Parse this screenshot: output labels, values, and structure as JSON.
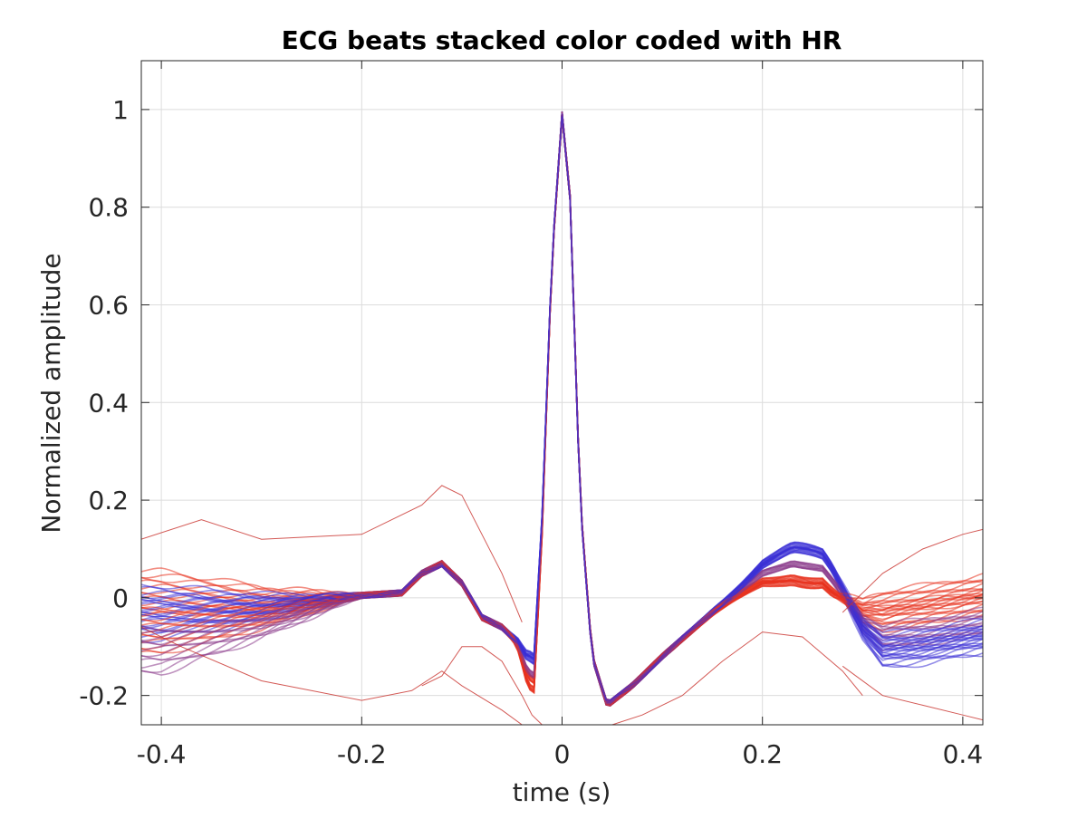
{
  "chart_data": {
    "type": "line",
    "title": "ECG beats stacked color coded with HR",
    "xlabel": "time (s)",
    "ylabel": "Normalized amplitude",
    "xlim": [
      -0.42,
      0.42
    ],
    "ylim": [
      -0.26,
      1.1
    ],
    "xticks": [
      -0.4,
      -0.2,
      0,
      0.2,
      0.4
    ],
    "xtick_labels": [
      "-0.4",
      "-0.2",
      "0",
      "0.2",
      "0.4"
    ],
    "yticks": [
      -0.2,
      0,
      0.2,
      0.4,
      0.6,
      0.8,
      1
    ],
    "ytick_labels": [
      "-0.2",
      "0",
      "0.2",
      "0.4",
      "0.6",
      "0.8",
      "1"
    ],
    "grid": true,
    "colormap": {
      "low_hr_color": "#e8321e",
      "high_hr_color": "#3a2fd6",
      "mid_color": "#8a3a8a"
    },
    "template_beat": {
      "x": [
        -0.42,
        -0.3,
        -0.2,
        -0.16,
        -0.14,
        -0.12,
        -0.1,
        -0.08,
        -0.06,
        -0.045,
        -0.035,
        -0.028,
        -0.02,
        -0.01,
        0,
        0.008,
        0.018,
        0.03,
        0.045,
        0.07,
        0.1,
        0.15,
        0.2,
        0.23,
        0.26,
        0.28,
        0.3,
        0.32,
        0.36,
        0.42
      ],
      "y": [
        -0.01,
        -0.01,
        0.005,
        0.01,
        0.05,
        0.07,
        0.03,
        -0.04,
        -0.06,
        -0.09,
        -0.14,
        -0.15,
        0.15,
        0.7,
        0.99,
        0.82,
        0.2,
        -0.12,
        -0.22,
        -0.18,
        -0.12,
        -0.03,
        0.05,
        0.07,
        0.06,
        0.01,
        -0.04,
        -0.06,
        -0.05,
        -0.03
      ]
    },
    "beat_groups": [
      {
        "hr_level": "low",
        "color": "#e8321e",
        "baseline_start": 0.02,
        "baseline_end": 0.02,
        "t_wave_delta": -0.03,
        "q_dip": -0.19
      },
      {
        "hr_level": "low",
        "color": "#e8321e",
        "baseline_start": -0.06,
        "baseline_end": 0.05,
        "t_wave_delta": -0.04,
        "q_dip": -0.17
      },
      {
        "hr_level": "mid",
        "color": "#8a3a8a",
        "baseline_start": -0.1,
        "baseline_end": -0.02,
        "t_wave_delta": 0.0,
        "q_dip": -0.16
      },
      {
        "hr_level": "high",
        "color": "#3a2fd6",
        "baseline_start": -0.01,
        "baseline_end": -0.04,
        "t_wave_delta": 0.04,
        "q_dip": -0.12
      },
      {
        "hr_level": "high",
        "color": "#3a2fd6",
        "baseline_start": -0.03,
        "baseline_end": -0.06,
        "t_wave_delta": 0.03,
        "q_dip": -0.13
      }
    ],
    "outlier_traces": [
      {
        "color": "#c8302a",
        "x": [
          -0.42,
          -0.38,
          -0.3,
          -0.2,
          -0.15,
          -0.12,
          -0.1,
          -0.06,
          -0.04,
          -0.03
        ],
        "y": [
          -0.06,
          -0.1,
          -0.17,
          -0.21,
          -0.19,
          -0.15,
          -0.18,
          -0.23,
          -0.26,
          -0.26
        ]
      },
      {
        "color": "#c8302a",
        "x": [
          -0.42,
          -0.36,
          -0.3,
          -0.2,
          -0.14,
          -0.12,
          -0.1,
          -0.06,
          -0.04
        ],
        "y": [
          0.12,
          0.16,
          0.12,
          0.13,
          0.19,
          0.23,
          0.21,
          0.05,
          -0.05
        ]
      },
      {
        "color": "#c8302a",
        "x": [
          -0.14,
          -0.12,
          -0.1,
          -0.08,
          -0.06,
          -0.04,
          -0.03,
          -0.02
        ],
        "y": [
          -0.18,
          -0.16,
          -0.1,
          -0.1,
          -0.13,
          -0.2,
          -0.24,
          -0.26
        ]
      },
      {
        "color": "#c8302a",
        "x": [
          0.05,
          0.08,
          0.12,
          0.16,
          0.2,
          0.24,
          0.28,
          0.3
        ],
        "y": [
          -0.26,
          -0.24,
          -0.2,
          -0.13,
          -0.07,
          -0.08,
          -0.15,
          -0.2
        ]
      },
      {
        "color": "#c8302a",
        "x": [
          0.28,
          0.32,
          0.36,
          0.4,
          0.42
        ],
        "y": [
          -0.03,
          0.05,
          0.1,
          0.13,
          0.14
        ]
      },
      {
        "color": "#c8302a",
        "x": [
          0.28,
          0.32,
          0.36,
          0.4,
          0.42
        ],
        "y": [
          -0.14,
          -0.2,
          -0.22,
          -0.24,
          -0.25
        ]
      }
    ]
  }
}
